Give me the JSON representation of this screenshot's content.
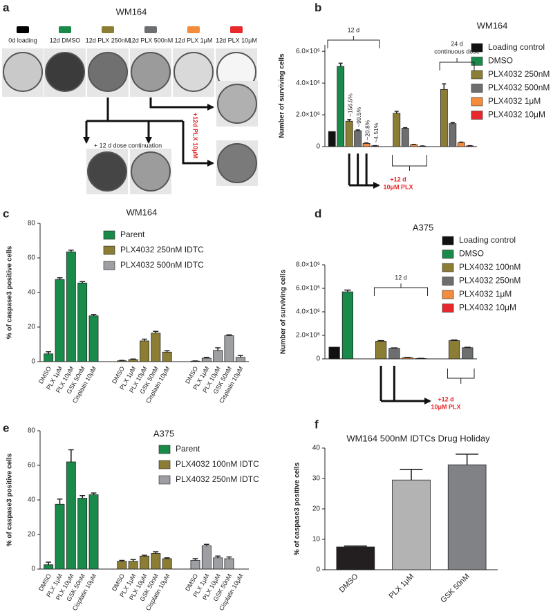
{
  "panel_a": {
    "panel": "a",
    "title": "WM164",
    "wells": [
      {
        "label": "0d  loading",
        "color": "#000000"
      },
      {
        "label": "12d DMSO",
        "color": "#1a8a4a"
      },
      {
        "label": "12d PLX 250nM",
        "color": "#8c7d35"
      },
      {
        "label": "12d PLX 500nM",
        "color": "#6d6e70"
      },
      {
        "label": "12d PLX 1μM",
        "color": "#f58b3c"
      },
      {
        "label": "12d PLX 10μM",
        "color": "#e8282b"
      }
    ],
    "continuation_note": "+ 12 d dose continuation",
    "side_note": "+12d PLX 10μM"
  },
  "chart_data": [
    {
      "panel": "b",
      "type": "bar",
      "title": "WM164",
      "y_label": "Number of surviving cells",
      "categories": [
        null,
        null,
        null
      ],
      "series": [
        {
          "name": "Loading control",
          "color": "#111111",
          "values": [
            950000,
            null,
            null
          ],
          "errors": [
            null,
            null,
            null
          ]
        },
        {
          "name": "DMSO",
          "color": "#1a8a4a",
          "values": [
            5050000,
            null,
            null
          ],
          "errors": [
            200000,
            null,
            null
          ]
        },
        {
          "name": "PLX4032 250nM",
          "color": "#8c7d35",
          "values": [
            1600000,
            2100000,
            3600000
          ],
          "errors": [
            100000,
            120000,
            350000
          ]
        },
        {
          "name": "PLX4032 500nM",
          "color": "#6d6e70",
          "values": [
            1000000,
            1150000,
            1450000
          ],
          "errors": [
            50000,
            40000,
            60000
          ]
        },
        {
          "name": "PLX4032 1μM",
          "color": "#f58b3c",
          "values": [
            200000,
            120000,
            250000
          ],
          "errors": [
            30000,
            20000,
            30000
          ]
        },
        {
          "name": "PLX4032 10μM",
          "color": "#e8282b",
          "values": [
            50000,
            30000,
            50000
          ],
          "errors": [
            10000,
            10000,
            10000
          ]
        }
      ],
      "ylim": [
        0,
        6400000
      ],
      "yticks": [
        0,
        {
          "value": 2000000,
          "label": "2.0×10⁶"
        },
        {
          "value": 4000000,
          "label": "4.0×10⁶"
        },
        {
          "value": 6000000,
          "label": "6.0×10⁶"
        }
      ],
      "legend": "right",
      "bar_notes": [
        "~156.5%",
        "~99.5%",
        "~20.8%",
        "~4.51%"
      ],
      "annotations": [
        "12 d",
        "24 d",
        "continuous dose",
        "+12 d",
        "10μM PLX"
      ]
    },
    {
      "panel": "c",
      "type": "bar",
      "title": "WM164",
      "y_label": "% of caspase3 positive cells",
      "categories": [
        "DMSO",
        "PLX 1μM",
        "PLX 10μM",
        "GSK 50nM",
        "Cisplatin 10μM"
      ],
      "series": [
        {
          "name": "Parent",
          "color": "#1a8a4a",
          "values": [
            4.5,
            47.5,
            63.5,
            45.5,
            26.5
          ],
          "errors": [
            1.2,
            1,
            1,
            0.8,
            0.8
          ]
        },
        {
          "name": "PLX4032 250nM IDTC",
          "color": "#8c7d35",
          "values": [
            0.5,
            1.2,
            12,
            16.5,
            5.5
          ],
          "errors": [
            0.2,
            0.3,
            1,
            1,
            0.8
          ]
        },
        {
          "name": "PLX4032 500nM IDTC",
          "color": "#9d9fa2",
          "values": [
            0.3,
            2,
            6.5,
            15,
            2.5
          ],
          "errors": [
            0.1,
            0.5,
            1.5,
            0.5,
            1
          ]
        }
      ],
      "ylim": [
        0,
        80
      ],
      "yticks": [
        0,
        20,
        40,
        60,
        80
      ],
      "legend": "top"
    },
    {
      "panel": "d",
      "type": "bar",
      "title": "A375",
      "y_label": "Number of surviving cells",
      "categories": [
        null,
        null,
        null
      ],
      "series": [
        {
          "name": "Loading control",
          "color": "#111111",
          "values": [
            1000000,
            null,
            null
          ],
          "errors": [
            null,
            null,
            null
          ]
        },
        {
          "name": "DMSO",
          "color": "#1a8a4a",
          "values": [
            5700000,
            null,
            null
          ],
          "errors": [
            150000,
            null,
            null
          ]
        },
        {
          "name": "PLX4032 100nM",
          "color": "#8c7d35",
          "values": [
            null,
            1500000,
            1550000
          ],
          "errors": [
            null,
            50000,
            50000
          ]
        },
        {
          "name": "PLX4032 250nM",
          "color": "#6d6e70",
          "values": [
            null,
            900000,
            950000
          ],
          "errors": [
            null,
            30000,
            30000
          ]
        },
        {
          "name": "PLX4032 1μM",
          "color": "#f58b3c",
          "values": [
            null,
            100000,
            null
          ],
          "errors": [
            null,
            20000,
            null
          ]
        },
        {
          "name": "PLX4032 10μM",
          "color": "#e8282b",
          "values": [
            null,
            30000,
            null
          ],
          "errors": [
            null,
            10000,
            null
          ]
        }
      ],
      "ylim": [
        0,
        8000000
      ],
      "yticks": [
        0,
        {
          "value": 2000000,
          "label": "2.0×10⁶"
        },
        {
          "value": 4000000,
          "label": "4.0×10⁶"
        },
        {
          "value": 6000000,
          "label": "6.0×10⁶"
        },
        {
          "value": 8000000,
          "label": "8.0×10⁶"
        }
      ],
      "legend": "right",
      "annotations": [
        "12 d",
        "+12 d",
        "10μM PLX"
      ]
    },
    {
      "panel": "e",
      "type": "bar",
      "title": "A375",
      "y_label": "% of caspase3 positive cells",
      "categories": [
        "DMSO",
        "PLX 1μM",
        "PLX 10μM",
        "GSK 50nM",
        "Cisplatin 10μM"
      ],
      "series": [
        {
          "name": "Parent",
          "color": "#1a8a4a",
          "values": [
            2.5,
            37.5,
            62,
            41,
            43
          ],
          "errors": [
            1.5,
            3,
            7,
            1.5,
            1
          ]
        },
        {
          "name": "PLX4032 100nM IDTC",
          "color": "#8c7d35",
          "values": [
            4.5,
            4.5,
            7.5,
            9,
            6
          ],
          "errors": [
            0.5,
            1,
            0.5,
            1,
            0.5
          ]
        },
        {
          "name": "PLX4032 250nM IDTC",
          "color": "#9d9fa2",
          "values": [
            5,
            13.5,
            6.5,
            6,
            null
          ],
          "errors": [
            1,
            0.8,
            1,
            1,
            null
          ]
        }
      ],
      "ylim": [
        0,
        80
      ],
      "yticks": [
        0,
        20,
        40,
        60,
        80
      ],
      "legend": "top"
    },
    {
      "panel": "f",
      "type": "bar",
      "title": "WM164 500nM IDTCs Drug Holiday",
      "y_label": "% of caspase3 positive cells",
      "categories": [
        "DMSO",
        "PLX 1μM",
        "GSK 50nM"
      ],
      "values": [
        7.5,
        29.5,
        34.5
      ],
      "errors": [
        0.3,
        3.5,
        3.5
      ],
      "colors": [
        "#231f20",
        "#b3b3b3",
        "#808285"
      ],
      "ylim": [
        0,
        40
      ],
      "yticks": [
        0,
        10,
        20,
        30,
        40
      ]
    }
  ]
}
